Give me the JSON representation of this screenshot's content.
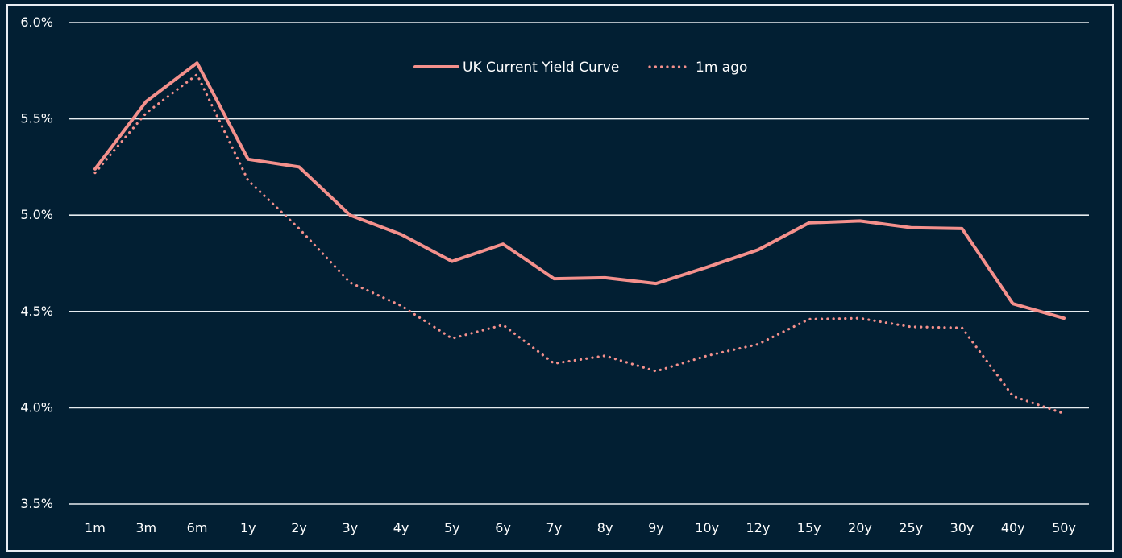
{
  "chart_data": {
    "type": "line",
    "title": "",
    "xlabel": "",
    "ylabel": "",
    "categories": [
      "1m",
      "3m",
      "6m",
      "1y",
      "2y",
      "3y",
      "4y",
      "5y",
      "6y",
      "7y",
      "8y",
      "9y",
      "10y",
      "12y",
      "15y",
      "20y",
      "25y",
      "30y",
      "40y",
      "50y"
    ],
    "series": [
      {
        "name": "UK Current Yield Curve",
        "style": "solid",
        "values": [
          5.24,
          5.59,
          5.79,
          5.29,
          5.25,
          5.0,
          4.9,
          4.76,
          4.85,
          4.67,
          4.675,
          4.645,
          4.73,
          4.82,
          4.96,
          4.97,
          4.935,
          4.93,
          4.54,
          4.465
        ]
      },
      {
        "name": "1m ago",
        "style": "dotted",
        "values": [
          5.22,
          5.53,
          5.73,
          5.18,
          4.93,
          4.65,
          4.53,
          4.36,
          4.43,
          4.23,
          4.27,
          4.19,
          4.27,
          4.33,
          4.46,
          4.465,
          4.42,
          4.415,
          4.06,
          3.97
        ]
      }
    ],
    "ylim": [
      3.5,
      6.0
    ],
    "yticks": [
      "3.5%",
      "4.0%",
      "4.5%",
      "5.0%",
      "5.5%",
      "6.0%"
    ],
    "ytick_values": [
      3.5,
      4.0,
      4.5,
      5.0,
      5.5,
      6.0
    ],
    "grid": "horizontal",
    "legend_position": "top-center",
    "line_color": "#f4908c"
  }
}
